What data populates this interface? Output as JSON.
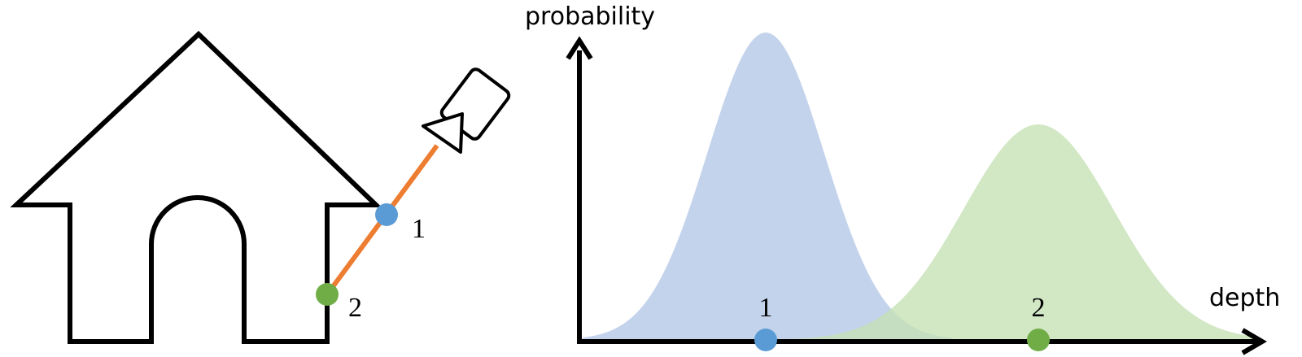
{
  "scene": {
    "points": [
      {
        "label": "1",
        "color": "#5b9bd5"
      },
      {
        "label": "2",
        "color": "#70ad47"
      }
    ],
    "ray_color": "#ed7d31",
    "outline_color": "#000000",
    "icons": [
      "house-icon",
      "camera-icon"
    ]
  },
  "plot": {
    "y_axis_label": "probability",
    "x_axis_label": "depth",
    "distributions": [
      {
        "label": "1",
        "fill_color": "#b4c7e7",
        "point_color": "#5b9bd5"
      },
      {
        "label": "2",
        "fill_color": "#c5e0b4",
        "point_color": "#70ad47"
      }
    ]
  }
}
